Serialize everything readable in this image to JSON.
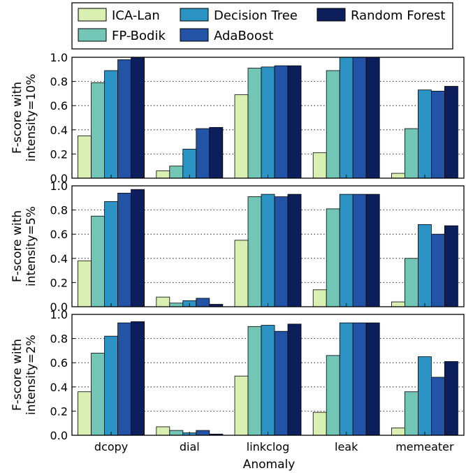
{
  "chart_data": {
    "type": "bar",
    "categories": [
      "dcopy",
      "dial",
      "linkclog",
      "leak",
      "memeater"
    ],
    "xlabel": "Anomaly",
    "legend_position": "top",
    "series_names": [
      "ICA-Lan",
      "FP-Bodik",
      "Decision Tree",
      "AdaBoost",
      "Random Forest"
    ],
    "colors": [
      "#d9f0b2",
      "#73c6b6",
      "#2c94c4",
      "#2353a5",
      "#0c1f5c"
    ],
    "yticks": [
      "0.0",
      "0.2",
      "0.4",
      "0.6",
      "0.8",
      "1.0"
    ],
    "ylim": [
      0,
      1.0
    ],
    "grid": "horizontal dotted",
    "panels": [
      {
        "ylabel_line1": "F-score with",
        "ylabel_line2": "intensity=10%",
        "series": [
          {
            "name": "ICA-Lan",
            "values": [
              0.35,
              0.06,
              0.69,
              0.21,
              0.04
            ]
          },
          {
            "name": "FP-Bodik",
            "values": [
              0.79,
              0.1,
              0.91,
              0.89,
              0.41
            ]
          },
          {
            "name": "Decision Tree",
            "values": [
              0.89,
              0.24,
              0.92,
              1.0,
              0.73
            ]
          },
          {
            "name": "AdaBoost",
            "values": [
              0.98,
              0.41,
              0.93,
              1.0,
              0.72
            ]
          },
          {
            "name": "Random Forest",
            "values": [
              1.0,
              0.42,
              0.93,
              1.0,
              0.76
            ]
          }
        ]
      },
      {
        "ylabel_line1": "F-score with",
        "ylabel_line2": "intensity=5%",
        "series": [
          {
            "name": "ICA-Lan",
            "values": [
              0.38,
              0.08,
              0.55,
              0.14,
              0.04
            ]
          },
          {
            "name": "FP-Bodik",
            "values": [
              0.75,
              0.03,
              0.91,
              0.81,
              0.4
            ]
          },
          {
            "name": "Decision Tree",
            "values": [
              0.87,
              0.05,
              0.93,
              0.93,
              0.68
            ]
          },
          {
            "name": "AdaBoost",
            "values": [
              0.94,
              0.07,
              0.91,
              0.93,
              0.6
            ]
          },
          {
            "name": "Random Forest",
            "values": [
              0.97,
              0.02,
              0.93,
              0.93,
              0.67
            ]
          }
        ]
      },
      {
        "ylabel_line1": "F-score with",
        "ylabel_line2": "intensity=2%",
        "series": [
          {
            "name": "ICA-Lan",
            "values": [
              0.36,
              0.07,
              0.49,
              0.19,
              0.06
            ]
          },
          {
            "name": "FP-Bodik",
            "values": [
              0.68,
              0.04,
              0.9,
              0.66,
              0.36
            ]
          },
          {
            "name": "Decision Tree",
            "values": [
              0.82,
              0.02,
              0.91,
              0.93,
              0.65
            ]
          },
          {
            "name": "AdaBoost",
            "values": [
              0.93,
              0.04,
              0.86,
              0.93,
              0.48
            ]
          },
          {
            "name": "Random Forest",
            "values": [
              0.94,
              0.01,
              0.92,
              0.93,
              0.61
            ]
          }
        ]
      }
    ]
  }
}
